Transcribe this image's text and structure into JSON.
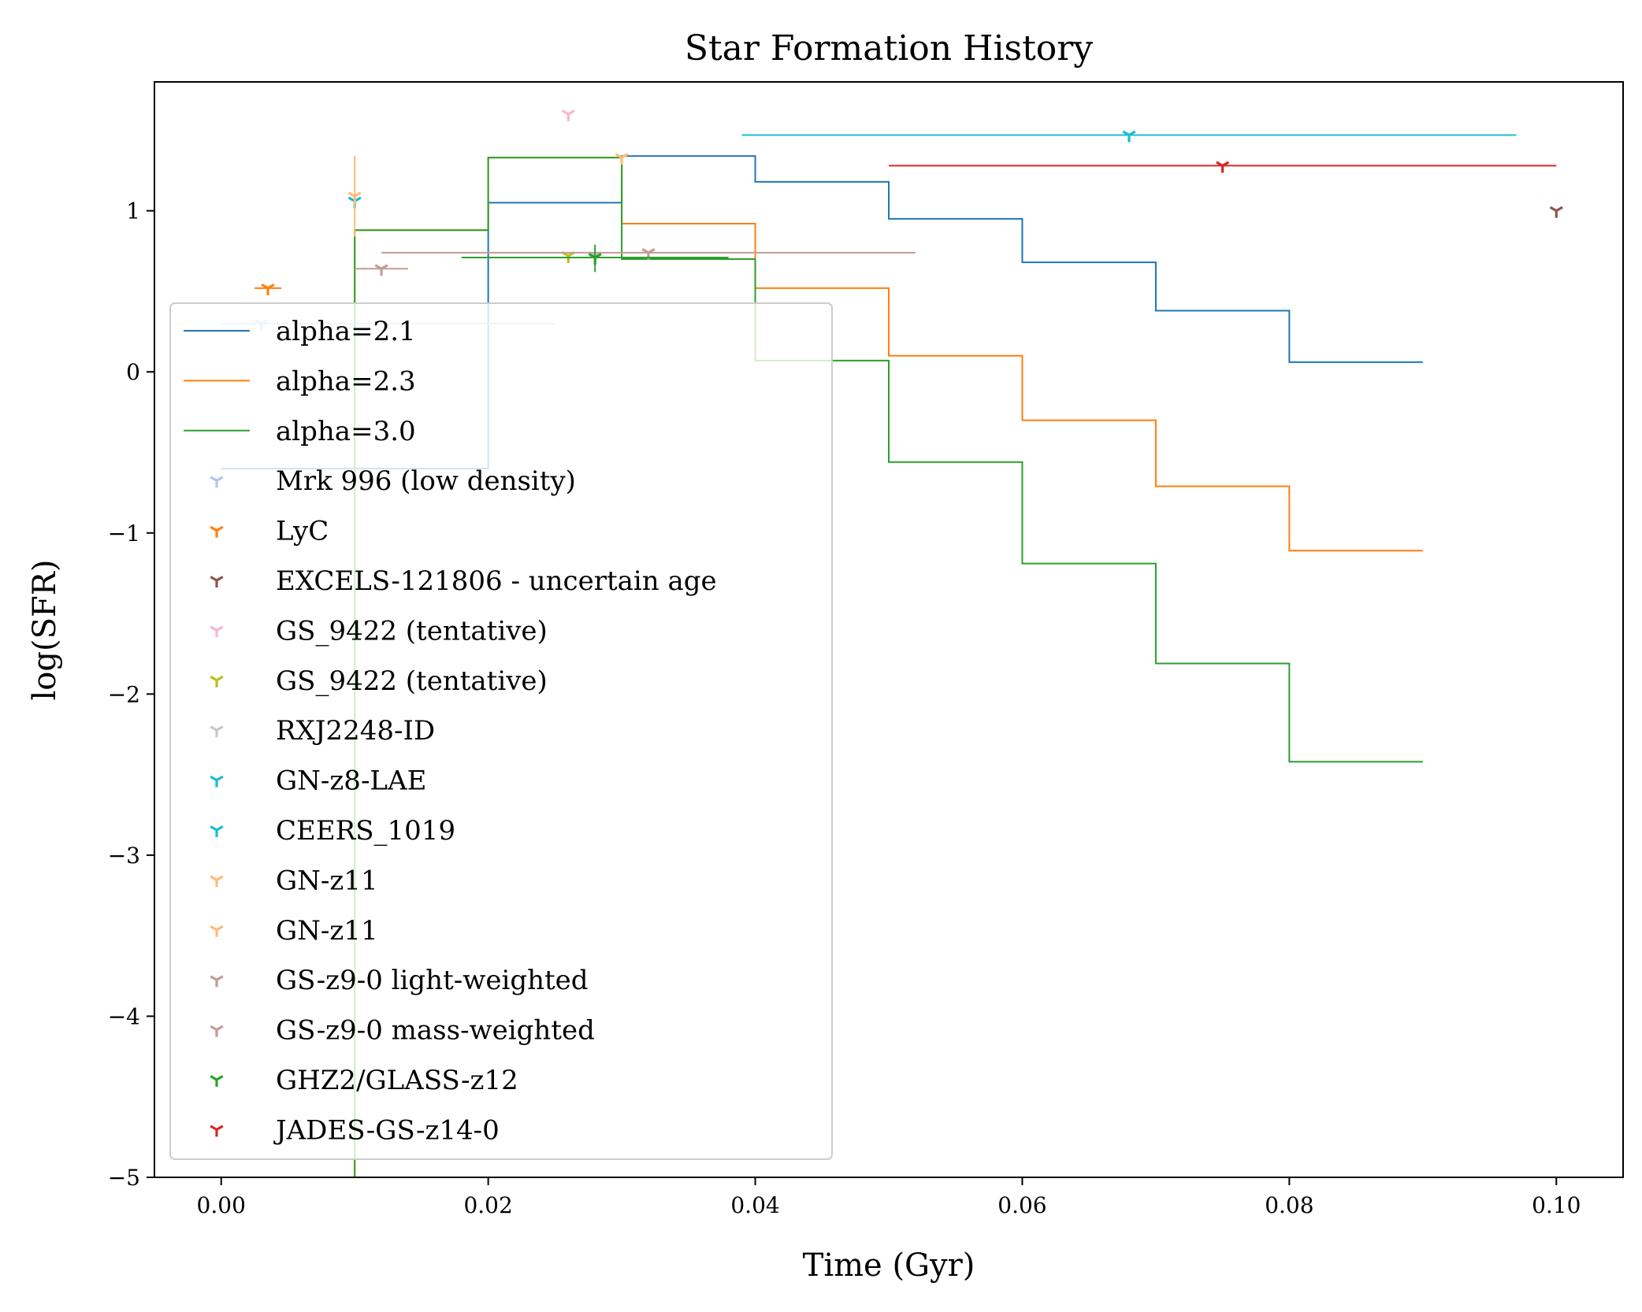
{
  "chart_data": {
    "type": "line",
    "title": "Star Formation History",
    "xlabel": "Time (Gyr)",
    "ylabel": "log(SFR)",
    "xlim": [
      -0.005,
      0.105
    ],
    "ylim": [
      -5,
      1.8
    ],
    "grid": false,
    "legend_placement": "lower-left",
    "x_ticks": [
      {
        "value": 0.0,
        "label": "0.00"
      },
      {
        "value": 0.02,
        "label": "0.02"
      },
      {
        "value": 0.04,
        "label": "0.04"
      },
      {
        "value": 0.06,
        "label": "0.06"
      },
      {
        "value": 0.08,
        "label": "0.08"
      },
      {
        "value": 0.1,
        "label": "0.10"
      }
    ],
    "y_ticks": [
      {
        "value": 1,
        "label": "1"
      },
      {
        "value": 0,
        "label": "0"
      },
      {
        "value": -1,
        "label": "−1"
      },
      {
        "value": -2,
        "label": "−2"
      },
      {
        "value": -3,
        "label": "−3"
      },
      {
        "value": -4,
        "label": "−4"
      },
      {
        "value": -5,
        "label": "−5"
      }
    ],
    "series": [
      {
        "name": "alpha=2.1",
        "kind": "step",
        "color": "#1f77b4",
        "x": [
          0.0,
          0.01,
          0.02,
          0.03,
          0.04,
          0.05,
          0.06,
          0.07,
          0.08,
          0.09
        ],
        "y": [
          -0.6,
          -0.6,
          1.05,
          1.34,
          1.18,
          0.95,
          0.68,
          0.38,
          0.06,
          0.06
        ]
      },
      {
        "name": "alpha=2.3",
        "kind": "step",
        "color": "#ff7f0e",
        "x": [
          0.0,
          0.01,
          0.02,
          0.03,
          0.04,
          0.05,
          0.06,
          0.07,
          0.08,
          0.09
        ],
        "y": [
          -5.0,
          0.88,
          1.33,
          0.92,
          0.52,
          0.1,
          -0.3,
          -0.71,
          -1.11,
          -1.11
        ]
      },
      {
        "name": "alpha=3.0",
        "kind": "step",
        "color": "#2ca02c",
        "x": [
          0.0,
          0.01,
          0.02,
          0.03,
          0.04,
          0.05,
          0.06,
          0.07,
          0.08,
          0.09
        ],
        "y": [
          -5.0,
          0.88,
          1.33,
          0.7,
          0.07,
          -0.56,
          -1.19,
          -1.81,
          -2.42,
          -2.42
        ]
      }
    ],
    "points": [
      {
        "name": "Mrk 996 (low density)",
        "color": "#aec7e8",
        "x": 0.003,
        "y": 0.3,
        "xerr": [
          0.003,
          0.022
        ],
        "yerr": [
          0,
          0
        ]
      },
      {
        "name": "LyC",
        "color": "#ff7f0e",
        "x": 0.0035,
        "y": 0.52,
        "xerr": [
          0.001,
          0.001
        ],
        "yerr": [
          0,
          0
        ]
      },
      {
        "name": "EXCELS-121806 - uncertain age",
        "color": "#8c564b",
        "x": 0.1,
        "y": 1.0,
        "xerr": [
          0,
          0
        ],
        "yerr": [
          0,
          0
        ]
      },
      {
        "name": "GS_9422 (tentative)",
        "color": "#f7b6d2",
        "x": 0.026,
        "y": 1.6,
        "xerr": [
          0,
          0
        ],
        "yerr": [
          0,
          0
        ]
      },
      {
        "name": "GS_9422 (tentative)",
        "color": "#bcbd22",
        "x": 0.026,
        "y": 0.72,
        "xerr": [
          0,
          0
        ],
        "yerr": [
          0,
          0
        ]
      },
      {
        "name": "RXJ2248-ID",
        "color": "#c7c7c7",
        "x": 0.028,
        "y": 0.72,
        "xerr": [
          0,
          0
        ],
        "yerr": [
          0,
          0
        ]
      },
      {
        "name": "GN-z8-LAE",
        "color": "#17becf",
        "x": 0.068,
        "y": 1.47,
        "xerr": [
          0.029,
          0.029
        ],
        "yerr": [
          0,
          0
        ]
      },
      {
        "name": "CEERS_1019",
        "color": "#17becf",
        "x": 0.01,
        "y": 1.06,
        "xerr": [
          0,
          0
        ],
        "yerr": [
          0,
          0
        ]
      },
      {
        "name": "GN-z11",
        "color": "#ffbb78",
        "x": 0.01,
        "y": 1.09,
        "xerr": [
          0,
          0
        ],
        "yerr": [
          0.25,
          0.25
        ]
      },
      {
        "name": "GN-z11",
        "color": "#ffbb78",
        "x": 0.03,
        "y": 1.33,
        "xerr": [
          0,
          0
        ],
        "yerr": [
          0,
          0
        ]
      },
      {
        "name": "GS-z9-0 light-weighted",
        "color": "#c49c94",
        "x": 0.012,
        "y": 0.64,
        "xerr": [
          0.002,
          0.002
        ],
        "yerr": [
          0,
          0
        ]
      },
      {
        "name": "GS-z9-0 mass-weighted",
        "color": "#c49c94",
        "x": 0.032,
        "y": 0.74,
        "xerr": [
          0.02,
          0.02
        ],
        "yerr": [
          0,
          0
        ]
      },
      {
        "name": "GHZ2/GLASS-z12",
        "color": "#2ca02c",
        "x": 0.028,
        "y": 0.71,
        "xerr": [
          0.01,
          0.01
        ],
        "yerr": [
          0.09,
          0.08
        ]
      },
      {
        "name": "JADES-GS-z14-0",
        "color": "#d62728",
        "x": 0.075,
        "y": 1.28,
        "xerr": [
          0.025,
          0.025
        ],
        "yerr": [
          0,
          0
        ]
      }
    ]
  }
}
